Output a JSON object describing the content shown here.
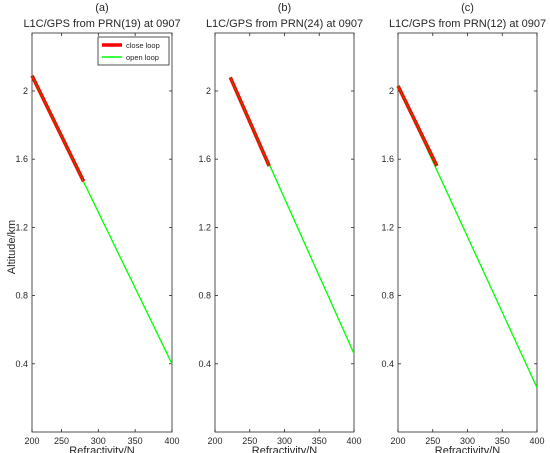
{
  "figure": {
    "ylabel": "Altitude/km",
    "xlabel": "Refractivity/N",
    "legend": {
      "entries": [
        "close loop",
        "open loop"
      ],
      "placement": "top-right of panel (a)"
    },
    "colors": {
      "close": "#ff0000",
      "close_core": "#8a5a00",
      "open": "#00ff00",
      "axis": "#262626"
    }
  },
  "chart_data": [
    {
      "type": "line",
      "tag": "(a)",
      "title": "L1C/GPS from PRN(19) at 0907",
      "xlabel": "Refractivity/N",
      "ylabel": "Altitude/km",
      "xlim": [
        210,
        400
      ],
      "ylim": [
        0,
        2.34
      ],
      "xticks": [
        200,
        250,
        300,
        350,
        400
      ],
      "xtick_labels": [
        "200",
        "250",
        "300",
        "350",
        "400"
      ],
      "yticks": [
        0.4,
        0.8,
        1.2,
        1.6,
        2.0
      ],
      "ytick_labels": [
        "0.4",
        "0.8",
        "1.2",
        "1.6",
        "2"
      ],
      "series": [
        {
          "name": "close loop",
          "x": [
            210,
            280
          ],
          "y": [
            2.09,
            1.47
          ]
        },
        {
          "name": "open loop",
          "x": [
            210,
            400
          ],
          "y": [
            2.09,
            0.4
          ]
        }
      ]
    },
    {
      "type": "line",
      "tag": "(b)",
      "title": "L1C/GPS from PRN(24) at 0907",
      "xlabel": "Refractivity/N",
      "ylabel": "",
      "xlim": [
        200,
        400
      ],
      "ylim": [
        0,
        2.34
      ],
      "xticks": [
        200,
        250,
        300,
        350,
        400
      ],
      "xtick_labels": [
        "200",
        "250",
        "300",
        "350",
        "400"
      ],
      "yticks": [
        0.4,
        0.8,
        1.2,
        1.6,
        2.0
      ],
      "ytick_labels": [
        "0.4",
        "0.8",
        "1.2",
        "1.6",
        "2"
      ],
      "series": [
        {
          "name": "close loop",
          "x": [
            222,
            278
          ],
          "y": [
            2.08,
            1.56
          ]
        },
        {
          "name": "open loop",
          "x": [
            222,
            400
          ],
          "y": [
            2.08,
            0.46
          ]
        }
      ]
    },
    {
      "type": "line",
      "tag": "(c)",
      "title": "L1C/GPS from PRN(12) at 0907",
      "xlabel": "Refractivity/N",
      "ylabel": "",
      "xlim": [
        200,
        400
      ],
      "ylim": [
        0,
        2.34
      ],
      "xticks": [
        200,
        250,
        300,
        350,
        400
      ],
      "xtick_labels": [
        "200",
        "250",
        "300",
        "350",
        "400"
      ],
      "yticks": [
        0.4,
        0.8,
        1.2,
        1.6,
        2.0
      ],
      "ytick_labels": [
        "0.4",
        "0.8",
        "1.2",
        "1.6",
        "2"
      ],
      "series": [
        {
          "name": "close loop",
          "x": [
            200,
            256
          ],
          "y": [
            2.03,
            1.56
          ]
        },
        {
          "name": "open loop",
          "x": [
            200,
            400
          ],
          "y": [
            2.03,
            0.26
          ]
        }
      ]
    }
  ]
}
